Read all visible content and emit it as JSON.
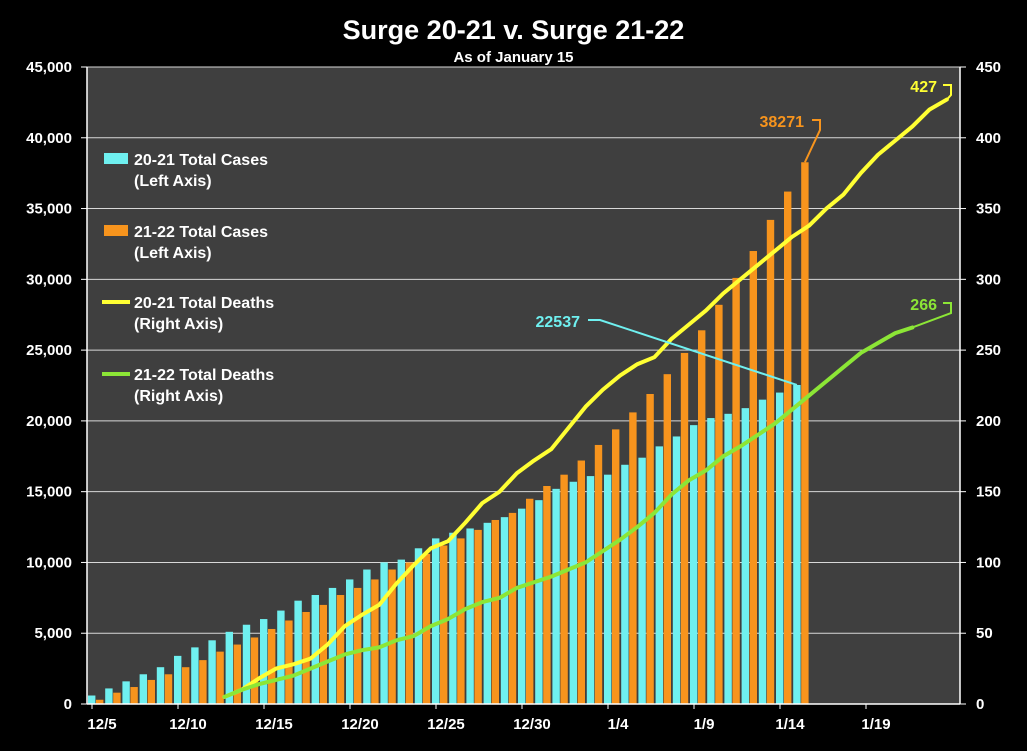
{
  "chart_data": {
    "type": "bar",
    "title": "Surge 20-21 v. Surge 21-22",
    "subtitle": "As of January 15",
    "x_tick_labels": [
      "12/5",
      "12/10",
      "12/15",
      "12/20",
      "12/25",
      "12/30",
      "1/4",
      "1/9",
      "1/14",
      "1/19"
    ],
    "left_axis": {
      "ylim": [
        0,
        45000
      ],
      "ticks": [
        0,
        5000,
        10000,
        15000,
        20000,
        25000,
        30000,
        35000,
        40000,
        45000
      ],
      "tick_labels": [
        "0",
        "5,000",
        "10,000",
        "15,000",
        "20,000",
        "25,000",
        "30,000",
        "35,000",
        "40,000",
        "45,000"
      ]
    },
    "right_axis": {
      "ylim": [
        0,
        450
      ],
      "ticks": [
        0,
        50,
        100,
        150,
        200,
        250,
        300,
        350,
        400,
        450
      ],
      "tick_labels": [
        "0",
        "50",
        "100",
        "150",
        "200",
        "250",
        "300",
        "350",
        "400",
        "450"
      ]
    },
    "grid": true,
    "legend_placement": "top-left",
    "series": [
      {
        "name": "20-21 Total Cases",
        "axis_note": "(Left Axis)",
        "kind": "bar",
        "axis": "left",
        "color": "#6FF0F0",
        "start_day": 0,
        "values": [
          600,
          1100,
          1600,
          2100,
          2600,
          3400,
          4000,
          4500,
          5100,
          5600,
          6000,
          6600,
          7300,
          7700,
          8200,
          8800,
          9500,
          10000,
          10200,
          11000,
          11700,
          12100,
          12400,
          12800,
          13200,
          13800,
          14400,
          15200,
          15700,
          16100,
          16200,
          16900,
          17400,
          18200,
          18900,
          19700,
          20200,
          20500,
          20900,
          21500,
          22000,
          22537
        ]
      },
      {
        "name": "21-22 Total Cases",
        "axis_note": "(Left Axis)",
        "kind": "bar",
        "axis": "left",
        "color": "#F7941D",
        "start_day": 0,
        "values": [
          300,
          800,
          1200,
          1700,
          2100,
          2600,
          3100,
          3700,
          4200,
          4700,
          5300,
          5900,
          6500,
          7000,
          7700,
          8200,
          8800,
          9500,
          10000,
          10600,
          11200,
          11700,
          12300,
          13000,
          13500,
          14500,
          15400,
          16200,
          17200,
          18300,
          19400,
          20600,
          21900,
          23300,
          24800,
          26400,
          28200,
          30100,
          32000,
          34200,
          36200,
          38271
        ]
      },
      {
        "name": "20-21 Total Deaths",
        "axis_note": "(Right Axis)",
        "kind": "line",
        "axis": "right",
        "color": "#FFFF33",
        "start_day": 7,
        "values": [
          5,
          10,
          18,
          25,
          28,
          32,
          42,
          55,
          63,
          70,
          85,
          98,
          110,
          115,
          128,
          142,
          150,
          163,
          172,
          180,
          195,
          210,
          222,
          232,
          240,
          245,
          258,
          268,
          278,
          290,
          300,
          310,
          320,
          330,
          338,
          350,
          360,
          375,
          388,
          398,
          408,
          420,
          427
        ]
      },
      {
        "name": "21-22 Total Deaths",
        "axis_note": "(Right Axis)",
        "kind": "line",
        "axis": "right",
        "color": "#8CE636",
        "start_day": 7,
        "values": [
          5,
          10,
          14,
          17,
          20,
          25,
          30,
          35,
          38,
          40,
          45,
          48,
          55,
          60,
          67,
          72,
          75,
          82,
          86,
          90,
          95,
          100,
          108,
          116,
          125,
          135,
          148,
          158,
          165,
          175,
          182,
          190,
          198,
          208,
          218,
          228,
          238,
          248,
          255,
          262,
          266
        ]
      }
    ],
    "annotations": [
      {
        "text": "38271",
        "series": "21-22 Total Cases",
        "color": "#F7941D"
      },
      {
        "text": "22537",
        "series": "20-21 Total Cases",
        "color": "#6FF0F0"
      },
      {
        "text": "427",
        "series": "20-21 Total Deaths",
        "color": "#FFFF33"
      },
      {
        "text": "266",
        "series": "21-22 Total Deaths",
        "color": "#8CE636"
      }
    ]
  }
}
